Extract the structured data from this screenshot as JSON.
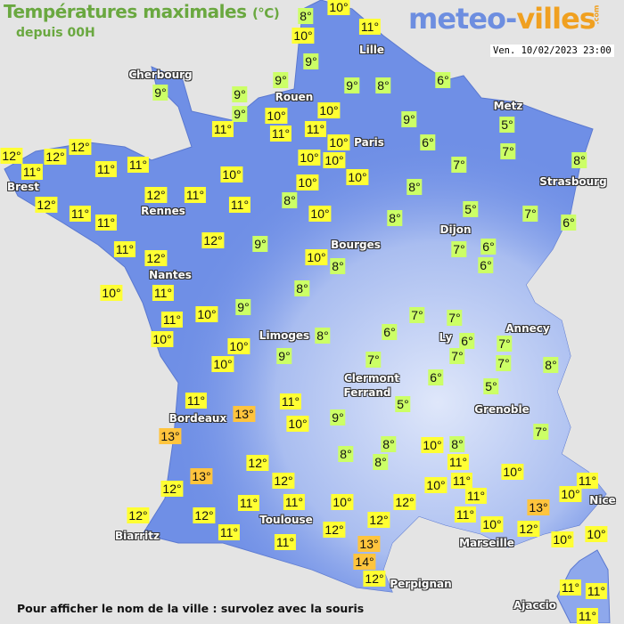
{
  "header": {
    "title": "Températures maximales",
    "unit": "(°C)",
    "subtitle": "depuis 00H",
    "logo_main": "meteo-",
    "logo_accent": "villes",
    "logo_suffix": ".com",
    "datetime": "Ven. 10/02/2023 23:00"
  },
  "footer": "Pour afficher le nom de la ville : survolez avec la souris",
  "colors": {
    "background": "#e4e4e4",
    "land": "#6f8fe6",
    "land_highland": "#c8d6f6",
    "cold_le_9": "#ccff66",
    "mild_10_12": "#ffff33",
    "warm_ge_13": "#ffc43d"
  },
  "cities": [
    "Lille",
    "Cherbourg",
    "Rouen",
    "Paris",
    "Metz",
    "Strasbourg",
    "Brest",
    "Rennes",
    "Dijon",
    "Bourges",
    "Nantes",
    "Limoges",
    "Annecy",
    "Ly",
    "Clermont",
    "Ferrand",
    "Grenoble",
    "Bordeaux",
    "Toulouse",
    "Biarritz",
    "Marseille",
    "Perpignan",
    "Nice",
    "Ajaccio"
  ],
  "temperatures": [
    "8°",
    "10°",
    "11°",
    "10°",
    "9°",
    "9°",
    "9°",
    "9°",
    "9°",
    "9°",
    "8°",
    "6°",
    "10°",
    "10°",
    "11°",
    "11°",
    "11°",
    "10°",
    "9°",
    "6°",
    "5°",
    "7°",
    "7°",
    "8°",
    "12°",
    "12°",
    "11°",
    "12°",
    "11°",
    "11°",
    "10°",
    "10°",
    "10°",
    "10°",
    "10°",
    "8°",
    "12°",
    "12°",
    "11°",
    "11°",
    "8°",
    "10°",
    "11°",
    "11°",
    "8°",
    "5°",
    "7°",
    "6°",
    "11°",
    "12°",
    "9°",
    "12°",
    "10°",
    "8°",
    "7°",
    "6°",
    "6°",
    "10°",
    "11°",
    "8°",
    "9°",
    "10°",
    "11°",
    "10°",
    "7°",
    "7°",
    "6°",
    "8°",
    "6°",
    "7°",
    "10°",
    "9°",
    "10°",
    "7°",
    "7°",
    "8°",
    "7°",
    "6°",
    "5°",
    "5°",
    "11°",
    "11°",
    "13°",
    "10°",
    "9°",
    "13°",
    "7°",
    "8°",
    "8°",
    "10°",
    "8°",
    "8°",
    "12°",
    "11°",
    "13°",
    "12°",
    "12°",
    "10°",
    "11°",
    "10°",
    "11°",
    "11°",
    "11°",
    "10°",
    "12°",
    "11°",
    "10°",
    "11°",
    "10°",
    "13°",
    "12°",
    "12°",
    "11°",
    "12°",
    "12°",
    "12°",
    "10°",
    "10°",
    "11°",
    "13°",
    "14°",
    "12°",
    "11°",
    "11°",
    "11°"
  ]
}
